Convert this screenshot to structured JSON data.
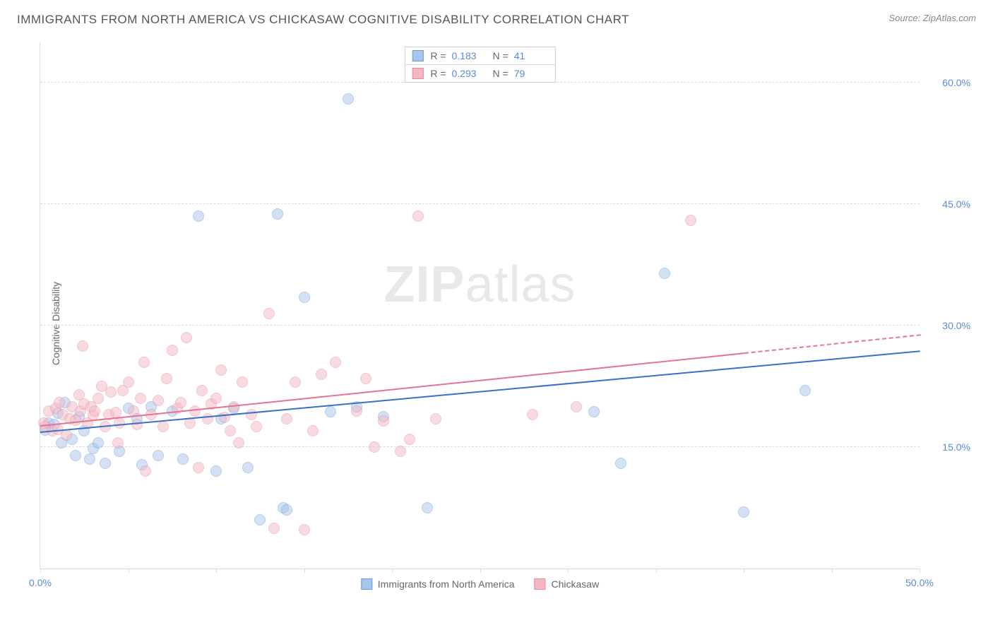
{
  "title": "IMMIGRANTS FROM NORTH AMERICA VS CHICKASAW COGNITIVE DISABILITY CORRELATION CHART",
  "source_prefix": "Source: ",
  "source_link": "ZipAtlas.com",
  "y_axis_label": "Cognitive Disability",
  "watermark_a": "ZIP",
  "watermark_b": "atlas",
  "chart": {
    "type": "scatter",
    "xlim": [
      0,
      50
    ],
    "ylim": [
      0,
      65
    ],
    "x_ticks": [
      0,
      5,
      10,
      15,
      20,
      25,
      30,
      35,
      40,
      45,
      50
    ],
    "x_tick_labels": {
      "0": "0.0%",
      "50": "50.0%"
    },
    "y_gridlines": [
      15,
      30,
      45,
      60
    ],
    "y_tick_labels": {
      "15": "15.0%",
      "30": "30.0%",
      "45": "45.0%",
      "60": "60.0%"
    },
    "grid_color": "#dcdcdc",
    "tick_label_color": "#5b8bd4",
    "marker_radius": 8,
    "marker_opacity": 0.5,
    "series": [
      {
        "name": "Immigrants from North America",
        "fill_color": "#a8c5ec",
        "stroke_color": "#6a9bd8",
        "trend_color": "#3b6fc9",
        "R": "0.183",
        "N": "41",
        "trend": {
          "x0": 0,
          "y0": 17.0,
          "x1": 50,
          "y1": 27.0,
          "solid_until_x": 50
        },
        "points": [
          [
            0.3,
            17.1
          ],
          [
            0.5,
            18.0
          ],
          [
            0.8,
            17.8
          ],
          [
            1.0,
            19.2
          ],
          [
            1.2,
            15.5
          ],
          [
            1.4,
            20.5
          ],
          [
            1.8,
            16.0
          ],
          [
            2.0,
            14.0
          ],
          [
            2.2,
            18.8
          ],
          [
            2.5,
            17.0
          ],
          [
            2.8,
            13.5
          ],
          [
            3.0,
            14.8
          ],
          [
            3.3,
            15.5
          ],
          [
            3.7,
            13.0
          ],
          [
            4.5,
            14.5
          ],
          [
            5.0,
            19.8
          ],
          [
            5.5,
            18.5
          ],
          [
            5.8,
            12.8
          ],
          [
            6.3,
            20.0
          ],
          [
            6.7,
            14.0
          ],
          [
            7.5,
            19.5
          ],
          [
            8.1,
            13.5
          ],
          [
            9.0,
            43.5
          ],
          [
            10.0,
            12.0
          ],
          [
            10.3,
            18.5
          ],
          [
            11.0,
            19.8
          ],
          [
            11.8,
            12.5
          ],
          [
            12.5,
            6.0
          ],
          [
            13.5,
            43.8
          ],
          [
            13.8,
            7.5
          ],
          [
            14.0,
            7.2
          ],
          [
            15.0,
            33.5
          ],
          [
            16.5,
            19.4
          ],
          [
            17.5,
            58.0
          ],
          [
            18.0,
            20.0
          ],
          [
            19.5,
            18.8
          ],
          [
            22.0,
            7.5
          ],
          [
            31.5,
            19.4
          ],
          [
            33.0,
            13.0
          ],
          [
            35.5,
            36.5
          ],
          [
            40.0,
            7.0
          ],
          [
            43.5,
            22.0
          ]
        ]
      },
      {
        "name": "Chickasaw",
        "fill_color": "#f3b9c3",
        "stroke_color": "#e98ba0",
        "trend_color": "#e57393",
        "R": "0.293",
        "N": "79",
        "trend": {
          "x0": 0,
          "y0": 17.8,
          "x1": 50,
          "y1": 29.0,
          "solid_until_x": 40
        },
        "points": [
          [
            0.2,
            18.0
          ],
          [
            0.3,
            17.5
          ],
          [
            0.5,
            19.5
          ],
          [
            0.7,
            17.0
          ],
          [
            0.9,
            19.8
          ],
          [
            1.0,
            17.2
          ],
          [
            1.1,
            20.5
          ],
          [
            1.3,
            19.0
          ],
          [
            1.5,
            16.5
          ],
          [
            1.7,
            18.5
          ],
          [
            1.8,
            20.0
          ],
          [
            2.0,
            18.3
          ],
          [
            2.2,
            21.5
          ],
          [
            2.3,
            19.5
          ],
          [
            2.4,
            27.5
          ],
          [
            2.5,
            20.3
          ],
          [
            2.7,
            18.0
          ],
          [
            2.9,
            20.0
          ],
          [
            3.0,
            18.9
          ],
          [
            3.1,
            19.5
          ],
          [
            3.3,
            21.0
          ],
          [
            3.5,
            22.5
          ],
          [
            3.7,
            17.5
          ],
          [
            3.9,
            19.0
          ],
          [
            4.0,
            21.8
          ],
          [
            4.3,
            19.3
          ],
          [
            4.4,
            15.5
          ],
          [
            4.5,
            18.0
          ],
          [
            4.7,
            22.0
          ],
          [
            5.0,
            23.0
          ],
          [
            5.3,
            19.5
          ],
          [
            5.5,
            17.8
          ],
          [
            5.7,
            21.0
          ],
          [
            5.9,
            25.5
          ],
          [
            6.0,
            12.0
          ],
          [
            6.3,
            19.0
          ],
          [
            6.7,
            20.8
          ],
          [
            7.0,
            17.5
          ],
          [
            7.2,
            23.5
          ],
          [
            7.5,
            27.0
          ],
          [
            7.8,
            19.8
          ],
          [
            8.0,
            20.5
          ],
          [
            8.3,
            28.5
          ],
          [
            8.5,
            18.0
          ],
          [
            8.8,
            19.5
          ],
          [
            9.0,
            12.5
          ],
          [
            9.2,
            22.0
          ],
          [
            9.5,
            18.5
          ],
          [
            9.7,
            20.3
          ],
          [
            10.0,
            21.0
          ],
          [
            10.3,
            24.5
          ],
          [
            10.5,
            18.7
          ],
          [
            10.8,
            17.0
          ],
          [
            11.0,
            20.0
          ],
          [
            11.3,
            15.5
          ],
          [
            11.5,
            23.0
          ],
          [
            12.0,
            19.0
          ],
          [
            12.3,
            17.5
          ],
          [
            13.0,
            31.5
          ],
          [
            13.3,
            5.0
          ],
          [
            14.0,
            18.5
          ],
          [
            14.5,
            23.0
          ],
          [
            15.0,
            4.8
          ],
          [
            15.5,
            17.0
          ],
          [
            16.0,
            24.0
          ],
          [
            16.8,
            25.5
          ],
          [
            18.0,
            19.5
          ],
          [
            18.5,
            23.5
          ],
          [
            19.0,
            15.0
          ],
          [
            19.5,
            18.2
          ],
          [
            20.5,
            14.5
          ],
          [
            21.0,
            16.0
          ],
          [
            21.5,
            43.5
          ],
          [
            22.5,
            18.5
          ],
          [
            28.0,
            19.0
          ],
          [
            30.5,
            20.0
          ],
          [
            37.0,
            43.0
          ]
        ]
      }
    ]
  },
  "legend_top": {
    "r_label": "R  =",
    "n_label": "N  ="
  }
}
